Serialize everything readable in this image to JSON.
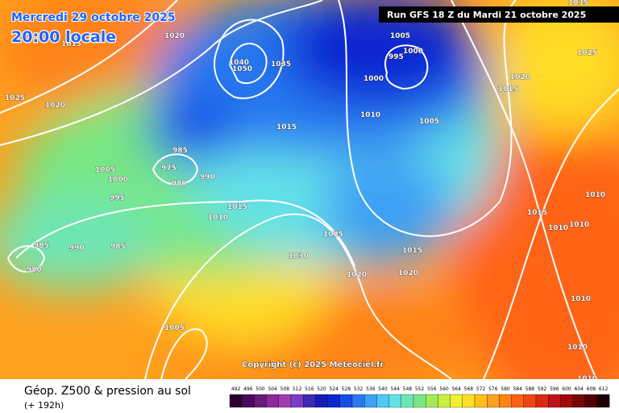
{
  "header": {
    "date": "Mercredi 29 octobre 2025",
    "time": "20:00 locale",
    "run": "Run GFS 18 Z du Mardi 21 octobre 2025"
  },
  "copyright": "Copyright (c) 2025 Meteociel.fr",
  "footer": {
    "title": "Géop. Z500 & pression au sol",
    "lead": "(+ 192h)"
  },
  "legend": {
    "values": [
      492,
      496,
      500,
      504,
      508,
      512,
      516,
      520,
      524,
      528,
      532,
      536,
      540,
      544,
      548,
      552,
      556,
      560,
      564,
      568,
      572,
      576,
      580,
      584,
      588,
      592,
      596,
      600,
      604,
      608,
      612
    ],
    "colors": [
      "#2b0030",
      "#4a0a5a",
      "#6a1a7a",
      "#8a2a9a",
      "#a03cb0",
      "#7a3cc8",
      "#3c2ab4",
      "#1a1ab4",
      "#0a28d2",
      "#1450e6",
      "#2878f0",
      "#3ca0f5",
      "#50c8f5",
      "#64e1e6",
      "#6ee6b4",
      "#78e682",
      "#a0eb5a",
      "#c8f03c",
      "#f0f032",
      "#ffdc28",
      "#ffbe1e",
      "#ffa01e",
      "#ff8214",
      "#ff6414",
      "#f04614",
      "#dc2814",
      "#be1414",
      "#a00a0a",
      "#780505",
      "#500000",
      "#1e0000"
    ]
  },
  "isobar_labels": [
    "1035",
    "1020",
    "1015",
    "1005",
    "1000",
    "995",
    "1000",
    "1025",
    "1020",
    "1015",
    "1025",
    "1020",
    "1040",
    "1050",
    "1035",
    "1010",
    "1005",
    "1015",
    "985",
    "975",
    "980",
    "990",
    "1005",
    "1000",
    "995",
    "1010",
    "1015",
    "1010",
    "1015",
    "1010",
    "1010",
    "1025",
    "985",
    "990",
    "985",
    "980",
    "1030",
    "1015",
    "1020",
    "1020",
    "1005",
    "1010",
    "1010",
    "1010"
  ]
}
